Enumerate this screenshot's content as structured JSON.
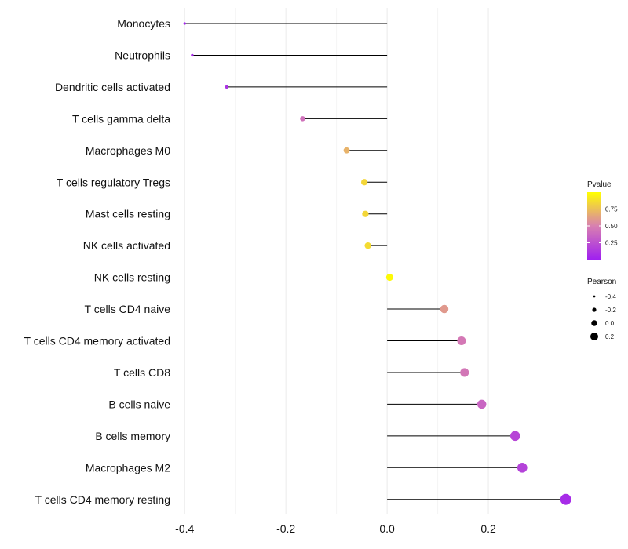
{
  "chart_data": {
    "type": "lollipop",
    "title": "",
    "xlabel": "",
    "ylabel": "",
    "xlim": [
      -0.405,
      0.355
    ],
    "xticks": [
      -0.4,
      -0.2,
      0.0,
      0.2
    ],
    "xtick_labels": [
      "-0.4",
      "-0.2",
      "0.0",
      "0.2"
    ],
    "grid": "vertical",
    "categories": [
      "Monocytes",
      "Neutrophils",
      "Dendritic cells activated",
      "T cells gamma delta",
      "Macrophages M0",
      "T cells regulatory  Tregs ",
      "Mast cells resting",
      "NK cells activated",
      "NK cells resting",
      "T cells CD4 naive",
      "T cells CD4 memory activated",
      "T cells CD8",
      "B cells naive",
      "B cells memory",
      "Macrophages M2",
      "T cells CD4 memory resting"
    ],
    "pearson": [
      -0.4,
      -0.385,
      -0.317,
      -0.167,
      -0.08,
      -0.045,
      -0.043,
      -0.038,
      0.005,
      0.113,
      0.147,
      0.153,
      0.187,
      0.253,
      0.267,
      0.353
    ],
    "pvalue": [
      0.03,
      0.05,
      0.1,
      0.42,
      0.7,
      0.84,
      0.84,
      0.86,
      0.98,
      0.6,
      0.46,
      0.45,
      0.36,
      0.2,
      0.18,
      0.06
    ],
    "legend": {
      "position": "right",
      "color_title": "Pvalue",
      "color_range": [
        0.0,
        1.0
      ],
      "color_ticks": [
        0.25,
        0.5,
        0.75
      ],
      "color_tick_labels": [
        "0.25",
        "0.50",
        "0.75"
      ],
      "color_low": "#a020f0",
      "color_mid": "#d880b0",
      "color_high": "#ffff00",
      "size_title": "Pearson",
      "size_values": [
        -0.4,
        -0.2,
        0.0,
        0.2
      ],
      "size_labels": [
        "-0.4",
        "-0.2",
        "0.0",
        "0.2"
      ]
    }
  }
}
